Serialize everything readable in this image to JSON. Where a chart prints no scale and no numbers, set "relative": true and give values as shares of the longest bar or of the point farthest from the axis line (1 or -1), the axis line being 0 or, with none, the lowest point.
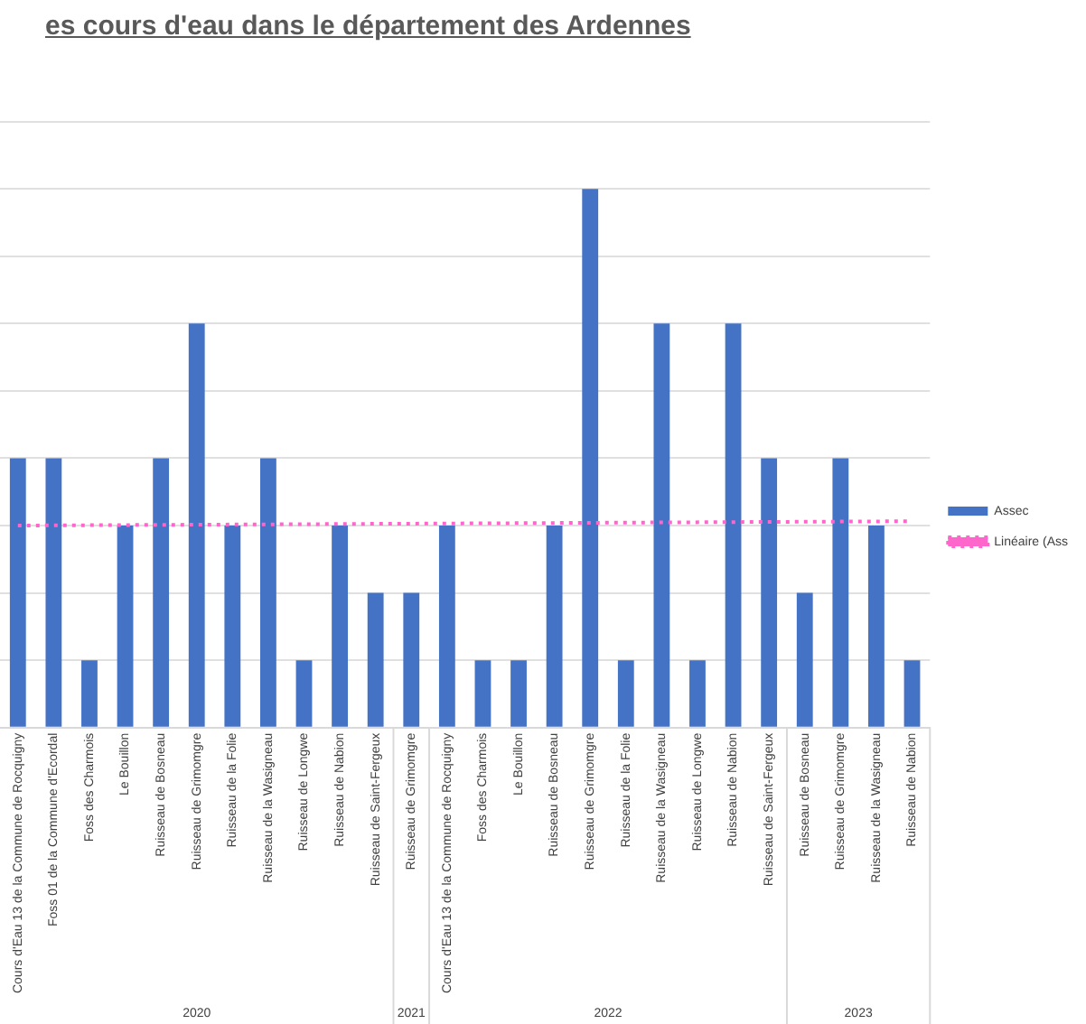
{
  "chart_data": {
    "type": "bar",
    "title": "es cours d'eau dans le département des Ardennes",
    "relative": true,
    "grid": "y",
    "legend": "right",
    "categories": [
      "Cours d'Eau 13 de la Commune de Rocquigny",
      "Foss 01 de la Commune d'Ecordal",
      "Foss des Charmois",
      "Le Bouillon",
      "Ruisseau de Bosneau",
      "Ruisseau de Grimomgre",
      "Ruisseau de la Folie",
      "Ruisseau de la Wasigneau",
      "Ruisseau de Longwe",
      "Ruisseau de Nabion",
      "Ruisseau de Saint-Fergeux",
      "Ruisseau de Grimomgre",
      "Cours d'Eau 13 de la Commune de Rocquigny",
      "Foss des Charmois",
      "Le Bouillon",
      "Ruisseau de Bosneau",
      "Ruisseau de Grimomgre",
      "Ruisseau de la Folie",
      "Ruisseau de la Wasigneau",
      "Ruisseau de Longwe",
      "Ruisseau de Nabion",
      "Ruisseau de Saint-Fergeux",
      "Ruisseau de Bosneau",
      "Ruisseau de Grimomgre",
      "Ruisseau de la Wasigneau",
      "Ruisseau de Nabion"
    ],
    "series": [
      {
        "name": "Assec",
        "color": "#4472c4",
        "values": [
          0.5,
          0.5,
          0.125,
          0.375,
          0.5,
          0.75,
          0.375,
          0.5,
          0.125,
          0.375,
          0.25,
          0.25,
          0.375,
          0.125,
          0.125,
          0.375,
          1,
          0.125,
          0.75,
          0.125,
          0.75,
          0.5,
          0.25,
          0.5,
          0.375,
          0.125
        ]
      },
      {
        "name": "Linéaire (Ass",
        "type": "line",
        "line_style": "dotted",
        "marker": "none",
        "color": "#ff66cc",
        "values": [
          0.375,
          null,
          null,
          null,
          null,
          null,
          null,
          null,
          null,
          null,
          null,
          null,
          null,
          null,
          null,
          null,
          null,
          null,
          null,
          null,
          null,
          null,
          null,
          null,
          null,
          0.383
        ]
      }
    ],
    "annotations": [
      "2020",
      "2021",
      "2022",
      "2023"
    ]
  }
}
